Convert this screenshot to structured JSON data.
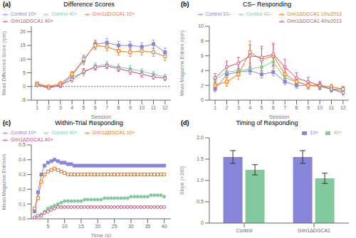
{
  "chart_data": [
    {
      "type": "line",
      "title": "Difference Scores",
      "annotations": [
        {
          "text": "(a)"
        }
      ],
      "x_label": "Session",
      "y_label": "Mean Difference Score (rpm)",
      "x": [
        1,
        2,
        3,
        4,
        5,
        6,
        7,
        8,
        9,
        10,
        11,
        12
      ],
      "xlim": [
        0.5,
        12.5
      ],
      "xticks": [
        1,
        2,
        3,
        4,
        5,
        6,
        7,
        8,
        9,
        10,
        11,
        12
      ],
      "ylim": [
        -5,
        22
      ],
      "yticks": [
        -5,
        0,
        5,
        10,
        15,
        20
      ],
      "hlines": [
        0
      ],
      "legend": "upper left",
      "series": [
        {
          "name": "Control 10+",
          "color": "#8884d8",
          "marker": "square",
          "values": [
            1.0,
            -0.2,
            0.5,
            4.0,
            9.5,
            15.5,
            16.0,
            15.0,
            15.0,
            14.5,
            15.5,
            12.5
          ],
          "errors": [
            0.5,
            0.5,
            0.8,
            1.0,
            1.5,
            1.5,
            1.5,
            1.5,
            1.5,
            1.5,
            1.5,
            1.5
          ]
        },
        {
          "name": "Control 40+",
          "color": "#82ca9d",
          "marker": "circle",
          "values": [
            0.5,
            -0.5,
            0.5,
            3.5,
            5.0,
            7.5,
            8.0,
            7.0,
            6.5,
            5.5,
            4.5,
            3.5
          ],
          "errors": [
            0.5,
            0.5,
            0.8,
            1.0,
            1.2,
            1.2,
            1.2,
            1.2,
            1.2,
            1.0,
            1.0,
            1.0
          ]
        },
        {
          "name": "Grin1ΔDGCA1 10+",
          "color": "#ff7300",
          "marker": "open_square",
          "values": [
            1.0,
            0.0,
            1.0,
            4.5,
            10.0,
            15.0,
            14.5,
            13.0,
            12.5,
            13.0,
            12.5,
            11.0
          ],
          "errors": [
            0.5,
            0.5,
            0.8,
            1.0,
            1.5,
            1.5,
            1.5,
            1.5,
            1.5,
            1.5,
            1.5,
            1.5
          ]
        },
        {
          "name": "Grin1ΔDGCA1 40+",
          "color": "#d0457f",
          "marker": "open_circle",
          "values": [
            0.5,
            -0.5,
            0.5,
            2.5,
            5.5,
            7.0,
            7.5,
            6.5,
            5.5,
            4.5,
            3.5,
            3.0
          ],
          "errors": [
            0.5,
            0.5,
            0.8,
            0.8,
            1.0,
            1.0,
            1.0,
            1.0,
            1.0,
            1.0,
            0.8,
            0.8
          ]
        }
      ]
    },
    {
      "type": "line",
      "title": "CS– Responding",
      "annotations": [
        {
          "text": "(b)"
        }
      ],
      "x_label": "Session",
      "y_label": "Mean Magazine Entries (rpm)",
      "x": [
        1,
        2,
        3,
        4,
        5,
        6,
        7,
        8,
        9,
        10,
        11,
        12
      ],
      "xlim": [
        0.5,
        12.5
      ],
      "xticks": [
        1,
        2,
        3,
        4,
        5,
        6,
        7,
        8,
        9,
        10,
        11,
        12
      ],
      "ylim": [
        0,
        10
      ],
      "yticks": [
        0,
        2,
        4,
        6,
        8,
        10
      ],
      "legend": "upper right",
      "series": [
        {
          "name": "Control 10–",
          "color": "#8884d8",
          "marker": "square",
          "values": [
            1.5,
            3.5,
            3.8,
            4.0,
            3.5,
            3.8,
            2.5,
            2.0,
            2.0,
            2.0,
            1.5,
            1.5
          ],
          "errors": [
            0.4,
            0.5,
            0.5,
            0.5,
            0.5,
            0.5,
            0.4,
            0.4,
            0.4,
            0.4,
            0.3,
            0.3
          ]
        },
        {
          "name": "Control 40–",
          "color": "#82ca9d",
          "marker": "circle",
          "values": [
            2.8,
            3.8,
            4.0,
            4.2,
            4.5,
            5.2,
            3.0,
            2.5,
            2.0,
            1.8,
            1.5,
            1.2
          ],
          "errors": [
            0.5,
            0.5,
            0.6,
            0.6,
            0.6,
            0.6,
            0.5,
            0.4,
            0.4,
            0.4,
            0.3,
            0.3
          ]
        },
        {
          "name": "Grin1ΔDGCA1 10\\u2013",
          "color": "#ff7300",
          "marker": "open_square",
          "values": [
            2.0,
            2.5,
            3.5,
            6.5,
            5.5,
            6.0,
            3.5,
            2.5,
            2.0,
            2.0,
            1.8,
            1.5
          ],
          "errors": [
            0.5,
            0.6,
            0.7,
            1.5,
            1.5,
            1.5,
            0.8,
            0.6,
            0.5,
            0.5,
            0.4,
            0.4
          ]
        },
        {
          "name": "Grin1ΔDGCA1 40\\u2013",
          "color": "#d0457f",
          "marker": "open_circle",
          "values": [
            3.0,
            4.5,
            5.0,
            6.0,
            5.8,
            6.2,
            4.5,
            3.0,
            2.5,
            2.0,
            1.5,
            1.0
          ],
          "errors": [
            0.6,
            0.8,
            0.8,
            1.5,
            1.5,
            1.5,
            1.0,
            0.7,
            0.6,
            0.5,
            0.4,
            0.3
          ]
        }
      ]
    },
    {
      "type": "line",
      "title": "Within-Trial Responding",
      "annotations": [
        {
          "text": "(c)"
        }
      ],
      "x_label": "Time (s)",
      "y_label": "Mean Magazine Entries/s",
      "x": [
        1,
        2,
        3,
        4,
        5,
        6,
        7,
        8,
        9,
        10,
        11,
        12,
        13,
        14,
        15,
        16,
        17,
        18,
        19,
        20,
        21,
        22,
        23,
        24,
        25,
        26,
        27,
        28,
        29,
        30,
        31,
        32,
        33,
        34,
        35,
        36,
        37,
        38,
        39,
        40
      ],
      "xlim": [
        0,
        42
      ],
      "xticks": [
        5,
        10,
        15,
        20,
        25,
        30,
        35,
        40
      ],
      "ylim": [
        0,
        0.5
      ],
      "yticks": [
        {
          "value": 0,
          "label": "0.0"
        },
        0.1,
        0.2,
        0.3,
        0.4,
        0.5
      ],
      "legend": "upper left",
      "series": [
        {
          "name": "Control 10+",
          "color": "#8884d8",
          "marker": "square",
          "values": [
            0.05,
            0.18,
            0.3,
            0.36,
            0.38,
            0.39,
            0.4,
            0.39,
            0.38,
            0.38,
            0.37,
            0.37,
            0.36,
            0.36,
            0.36,
            0.36,
            0.36,
            0.36,
            0.36,
            0.36,
            0.36,
            0.36,
            0.36,
            0.36,
            0.36,
            0.36,
            0.36,
            0.36,
            0.36,
            0.36,
            0.36,
            0.36,
            0.36,
            0.36,
            0.36,
            0.36,
            0.36,
            0.36,
            0.36,
            0.36
          ]
        },
        {
          "name": "Grin1ΔDGCA1 10+",
          "color": "#ff7300",
          "marker": "open_square",
          "values": [
            0.07,
            0.14,
            0.25,
            0.3,
            0.32,
            0.33,
            0.34,
            0.33,
            0.32,
            0.31,
            0.3,
            0.3,
            0.3,
            0.3,
            0.3,
            0.3,
            0.3,
            0.3,
            0.3,
            0.3,
            0.3,
            0.3,
            0.3,
            0.3,
            0.3,
            0.3,
            0.3,
            0.3,
            0.3,
            0.3,
            0.3,
            0.3,
            0.3,
            0.3,
            0.3,
            0.3,
            0.3,
            0.3,
            0.3,
            0.3
          ]
        },
        {
          "name": "Control 40+",
          "color": "#82ca9d",
          "marker": "circle",
          "values": [
            0.01,
            0.02,
            0.03,
            0.05,
            0.07,
            0.08,
            0.09,
            0.1,
            0.11,
            0.12,
            0.12,
            0.12,
            0.12,
            0.12,
            0.12,
            0.13,
            0.13,
            0.13,
            0.13,
            0.13,
            0.13,
            0.14,
            0.14,
            0.14,
            0.14,
            0.14,
            0.14,
            0.14,
            0.14,
            0.15,
            0.15,
            0.15,
            0.15,
            0.15,
            0.15,
            0.16,
            0.16,
            0.16,
            0.16,
            0.15
          ]
        },
        {
          "name": "Grin1ΔDGCA1 40+",
          "color": "#d0457f",
          "marker": "open_circle",
          "values": [
            0.01,
            0.02,
            0.02,
            0.04,
            0.05,
            0.06,
            0.07,
            0.08,
            0.08,
            0.08,
            0.08,
            0.08,
            0.08,
            0.08,
            0.08,
            0.08,
            0.08,
            0.08,
            0.08,
            0.08,
            0.08,
            0.08,
            0.08,
            0.08,
            0.08,
            0.08,
            0.08,
            0.08,
            0.08,
            0.08,
            0.08,
            0.08,
            0.08,
            0.08,
            0.08,
            0.08,
            0.08,
            0.08,
            0.08,
            0.08
          ]
        }
      ]
    },
    {
      "type": "bar",
      "title": "Timing of Responding",
      "annotations": [
        {
          "text": "(d)"
        }
      ],
      "y_label": "Slope (×100)",
      "categories": [
        "Control",
        "Grin1ΔDGCA1"
      ],
      "ylim": [
        0,
        2.0
      ],
      "yticks": [
        0,
        0.5,
        {
          "value": 1,
          "label": "1.0"
        },
        1.5,
        {
          "value": 2,
          "label": "2.0"
        }
      ],
      "legend": "upper right",
      "series": [
        {
          "name": "10+",
          "color": "#8884d8",
          "values": [
            1.55,
            1.55
          ],
          "errors": [
            0.15,
            0.15
          ]
        },
        {
          "name": "40+",
          "color": "#82ca9d",
          "values": [
            1.25,
            1.05
          ],
          "errors": [
            0.12,
            0.12
          ]
        }
      ]
    }
  ]
}
